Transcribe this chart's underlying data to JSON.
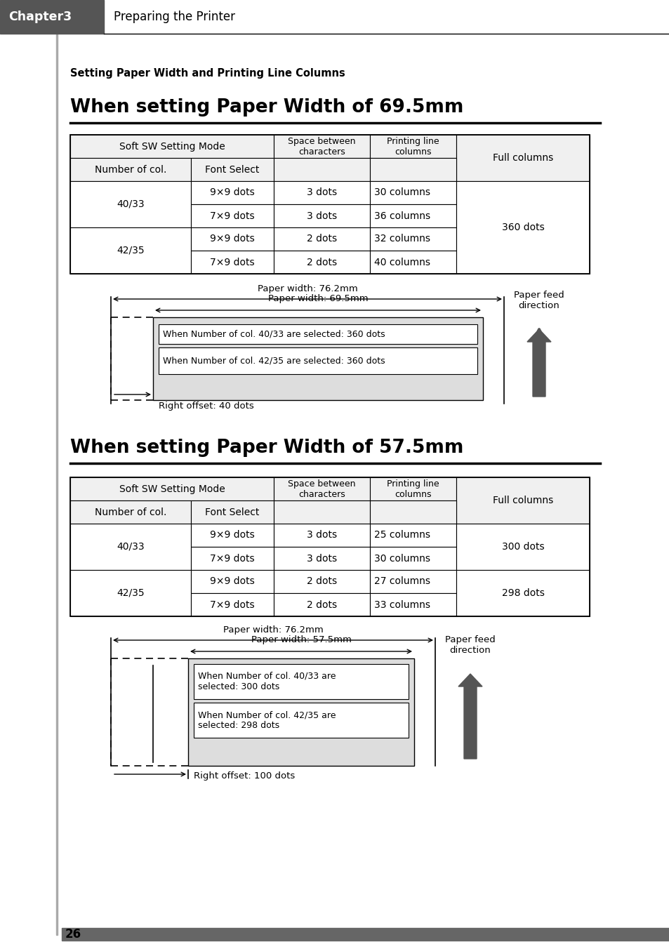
{
  "page_bg": "#ffffff",
  "header_bg": "#555555",
  "header_text": "Chapter3",
  "header_sub": "Preparing the Printer",
  "section_label": "Setting Paper Width and Printing Line Columns",
  "title1": "When setting Paper Width of 69.5mm",
  "title2": "When setting Paper Width of 57.5mm",
  "table1_rows": [
    [
      "40/33",
      "9×9 dots",
      "3 dots",
      "30 columns"
    ],
    [
      "40/33",
      "7×9 dots",
      "3 dots",
      "36 columns"
    ],
    [
      "42/35",
      "9×9 dots",
      "2 dots",
      "32 columns"
    ],
    [
      "42/35",
      "7×9 dots",
      "2 dots",
      "40 columns"
    ]
  ],
  "table1_full": "360 dots",
  "table2_rows": [
    [
      "40/33",
      "9×9 dots",
      "3 dots",
      "25 columns"
    ],
    [
      "40/33",
      "7×9 dots",
      "3 dots",
      "30 columns"
    ],
    [
      "42/35",
      "9×9 dots",
      "2 dots",
      "27 columns"
    ],
    [
      "42/35",
      "7×9 dots",
      "2 dots",
      "33 columns"
    ]
  ],
  "table2_full_a": "300 dots",
  "table2_full_b": "298 dots",
  "diag1_outer": "Paper width: 76.2mm",
  "diag1_inner": "Paper width: 69.5mm",
  "diag1_label1": "When Number of col. 40/33 are selected: 360 dots",
  "diag1_label2": "When Number of col. 42/35 are selected: 360 dots",
  "diag1_offset": "Right offset: 40 dots",
  "diag2_outer": "Paper width: 76.2mm",
  "diag2_inner": "Paper width: 57.5mm",
  "diag2_label1": "When Number of col. 40/33 are\nselected: 300 dots",
  "diag2_label2": "When Number of col. 42/35 are\nselected: 298 dots",
  "diag2_offset": "Right offset: 100 dots",
  "feed_label": "Paper feed\ndirection",
  "footer_text": "26",
  "footer_bg": "#666666",
  "left_bar_color": "#aaaaaa"
}
